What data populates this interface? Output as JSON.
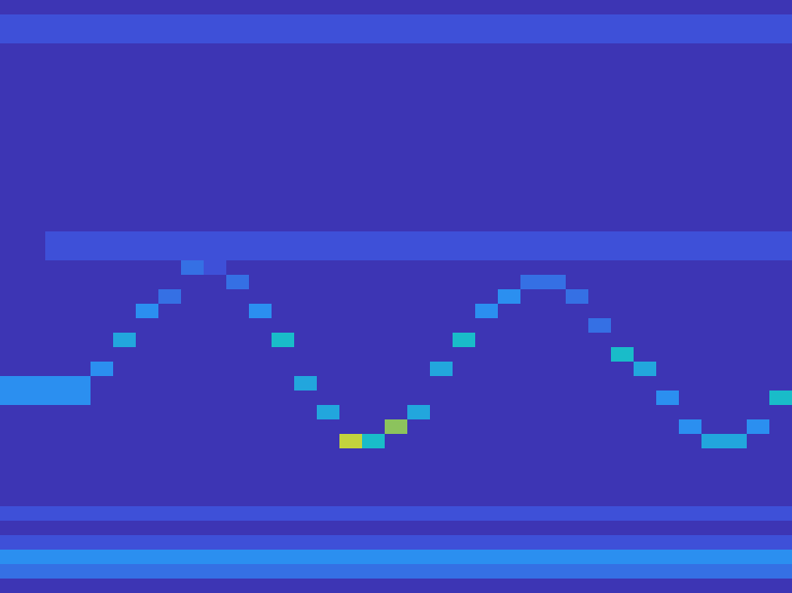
{
  "chart_data": {
    "type": "heatmap",
    "tick_labels": false,
    "zlim": [
      0,
      10
    ],
    "z": [
      [
        1,
        1,
        1,
        1,
        1,
        1,
        1,
        1,
        1,
        1,
        1,
        1,
        1,
        1,
        1,
        1,
        1,
        1,
        1,
        1,
        1,
        1,
        1,
        1,
        1,
        1,
        1,
        1,
        1,
        1,
        1,
        1,
        1,
        1,
        1
      ],
      [
        2,
        2,
        2,
        2,
        2,
        2,
        2,
        2,
        2,
        2,
        2,
        2,
        2,
        2,
        2,
        2,
        2,
        2,
        2,
        2,
        2,
        2,
        2,
        2,
        2,
        2,
        2,
        2,
        2,
        2,
        2,
        2,
        2,
        2,
        2
      ],
      [
        2,
        2,
        2,
        2,
        2,
        2,
        2,
        2,
        2,
        2,
        2,
        2,
        2,
        2,
        2,
        2,
        2,
        2,
        2,
        2,
        2,
        2,
        2,
        2,
        2,
        2,
        2,
        2,
        2,
        2,
        2,
        2,
        2,
        2,
        2
      ],
      [
        1,
        1,
        1,
        1,
        1,
        1,
        1,
        1,
        1,
        1,
        1,
        1,
        1,
        1,
        1,
        1,
        1,
        1,
        1,
        1,
        1,
        1,
        1,
        1,
        1,
        1,
        1,
        1,
        1,
        1,
        1,
        1,
        1,
        1,
        1
      ],
      [
        1,
        1,
        1,
        1,
        1,
        1,
        1,
        1,
        1,
        1,
        1,
        1,
        1,
        1,
        1,
        1,
        1,
        1,
        1,
        1,
        1,
        1,
        1,
        1,
        1,
        1,
        1,
        1,
        1,
        1,
        1,
        1,
        1,
        1,
        1
      ],
      [
        1,
        1,
        1,
        1,
        1,
        1,
        1,
        1,
        1,
        1,
        1,
        1,
        1,
        1,
        1,
        1,
        1,
        1,
        1,
        1,
        1,
        1,
        1,
        1,
        1,
        1,
        1,
        1,
        1,
        1,
        1,
        1,
        1,
        1,
        1
      ],
      [
        1,
        1,
        1,
        1,
        1,
        1,
        1,
        1,
        1,
        1,
        1,
        1,
        1,
        1,
        1,
        1,
        1,
        1,
        1,
        1,
        1,
        1,
        1,
        1,
        1,
        1,
        1,
        1,
        1,
        1,
        1,
        1,
        1,
        1,
        1
      ],
      [
        1,
        1,
        1,
        1,
        1,
        1,
        1,
        1,
        1,
        1,
        1,
        1,
        1,
        1,
        1,
        1,
        1,
        1,
        1,
        1,
        1,
        1,
        1,
        1,
        1,
        1,
        1,
        1,
        1,
        1,
        1,
        1,
        1,
        1,
        1
      ],
      [
        1,
        1,
        1,
        1,
        1,
        1,
        1,
        1,
        1,
        1,
        1,
        1,
        1,
        1,
        1,
        1,
        1,
        1,
        1,
        1,
        1,
        1,
        1,
        1,
        1,
        1,
        1,
        1,
        1,
        1,
        1,
        1,
        1,
        1,
        1
      ],
      [
        1,
        1,
        1,
        1,
        1,
        1,
        1,
        1,
        1,
        1,
        1,
        1,
        1,
        1,
        1,
        1,
        1,
        1,
        1,
        1,
        1,
        1,
        1,
        1,
        1,
        1,
        1,
        1,
        1,
        1,
        1,
        1,
        1,
        1,
        1
      ],
      [
        1,
        1,
        1,
        1,
        1,
        1,
        1,
        1,
        1,
        1,
        1,
        1,
        1,
        1,
        1,
        1,
        1,
        1,
        1,
        1,
        1,
        1,
        1,
        1,
        1,
        1,
        1,
        1,
        1,
        1,
        1,
        1,
        1,
        1,
        1
      ],
      [
        1,
        1,
        1,
        1,
        1,
        1,
        1,
        1,
        1,
        1,
        1,
        1,
        1,
        1,
        1,
        1,
        1,
        1,
        1,
        1,
        1,
        1,
        1,
        1,
        1,
        1,
        1,
        1,
        1,
        1,
        1,
        1,
        1,
        1,
        1
      ],
      [
        1,
        1,
        1,
        1,
        1,
        1,
        1,
        1,
        1,
        1,
        1,
        1,
        1,
        1,
        1,
        1,
        1,
        1,
        1,
        1,
        1,
        1,
        1,
        1,
        1,
        1,
        1,
        1,
        1,
        1,
        1,
        1,
        1,
        1,
        1
      ],
      [
        1,
        1,
        1,
        1,
        1,
        1,
        1,
        1,
        1,
        1,
        1,
        1,
        1,
        1,
        1,
        1,
        1,
        1,
        1,
        1,
        1,
        1,
        1,
        1,
        1,
        1,
        1,
        1,
        1,
        1,
        1,
        1,
        1,
        1,
        1
      ],
      [
        1,
        1,
        1,
        1,
        1,
        1,
        1,
        1,
        1,
        1,
        1,
        1,
        1,
        1,
        1,
        1,
        1,
        1,
        1,
        1,
        1,
        1,
        1,
        1,
        1,
        1,
        1,
        1,
        1,
        1,
        1,
        1,
        1,
        1,
        1
      ],
      [
        1,
        1,
        1,
        1,
        1,
        1,
        1,
        1,
        1,
        1,
        1,
        1,
        1,
        1,
        1,
        1,
        1,
        1,
        1,
        1,
        1,
        1,
        1,
        1,
        1,
        1,
        1,
        1,
        1,
        1,
        1,
        1,
        1,
        1,
        1
      ],
      [
        1,
        1,
        2,
        2,
        2,
        2,
        2,
        2,
        2,
        2,
        2,
        2,
        2,
        2,
        2,
        2,
        2,
        2,
        2,
        2,
        2,
        2,
        2,
        2,
        2,
        2,
        2,
        2,
        2,
        2,
        2,
        2,
        2,
        2,
        2
      ],
      [
        1,
        1,
        2,
        2,
        2,
        2,
        2,
        2,
        2,
        2,
        2,
        2,
        2,
        2,
        2,
        2,
        2,
        2,
        2,
        2,
        2,
        2,
        2,
        2,
        2,
        2,
        2,
        2,
        2,
        2,
        2,
        2,
        2,
        2,
        2
      ],
      [
        1,
        1,
        1,
        1,
        1,
        1,
        1,
        1,
        3,
        2,
        1,
        1,
        1,
        1,
        1,
        1,
        1,
        1,
        1,
        1,
        1,
        1,
        1,
        1,
        1,
        1,
        1,
        1,
        1,
        1,
        1,
        1,
        1,
        1,
        1
      ],
      [
        1,
        1,
        1,
        1,
        1,
        1,
        1,
        1,
        1,
        1,
        3,
        1,
        1,
        1,
        1,
        1,
        1,
        1,
        1,
        1,
        1,
        1,
        1,
        3,
        3,
        1,
        1,
        1,
        1,
        1,
        1,
        1,
        1,
        1,
        1
      ],
      [
        1,
        1,
        1,
        1,
        1,
        1,
        1,
        3,
        1,
        1,
        1,
        1,
        1,
        1,
        1,
        1,
        1,
        1,
        1,
        1,
        1,
        1,
        4,
        1,
        1,
        3,
        1,
        1,
        1,
        1,
        1,
        1,
        1,
        1,
        1
      ],
      [
        1,
        1,
        1,
        1,
        1,
        1,
        4,
        1,
        1,
        1,
        1,
        4,
        1,
        1,
        1,
        1,
        1,
        1,
        1,
        1,
        1,
        4,
        1,
        1,
        1,
        1,
        1,
        1,
        1,
        1,
        1,
        1,
        1,
        1,
        1
      ],
      [
        1,
        1,
        1,
        1,
        1,
        1,
        1,
        1,
        1,
        1,
        1,
        1,
        1,
        1,
        1,
        1,
        1,
        1,
        1,
        1,
        1,
        1,
        1,
        1,
        1,
        1,
        3,
        1,
        1,
        1,
        1,
        1,
        1,
        1,
        1
      ],
      [
        1,
        1,
        1,
        1,
        1,
        5,
        1,
        1,
        1,
        1,
        1,
        1,
        6,
        1,
        1,
        1,
        1,
        1,
        1,
        1,
        6,
        1,
        1,
        1,
        1,
        1,
        1,
        1,
        1,
        1,
        1,
        1,
        1,
        1,
        1
      ],
      [
        1,
        1,
        1,
        1,
        1,
        1,
        1,
        1,
        1,
        1,
        1,
        1,
        1,
        1,
        1,
        1,
        1,
        1,
        1,
        1,
        1,
        1,
        1,
        1,
        1,
        1,
        1,
        6,
        1,
        1,
        1,
        1,
        1,
        1,
        1
      ],
      [
        1,
        1,
        1,
        1,
        4,
        1,
        1,
        1,
        1,
        1,
        1,
        1,
        1,
        1,
        1,
        1,
        1,
        1,
        1,
        5,
        1,
        1,
        1,
        1,
        1,
        1,
        1,
        1,
        5,
        1,
        1,
        1,
        1,
        1,
        1
      ],
      [
        4,
        4,
        4,
        4,
        1,
        1,
        1,
        1,
        1,
        1,
        1,
        1,
        1,
        5,
        1,
        1,
        1,
        1,
        1,
        1,
        1,
        1,
        1,
        1,
        1,
        1,
        1,
        1,
        1,
        1,
        1,
        1,
        1,
        1,
        1
      ],
      [
        4,
        4,
        4,
        4,
        1,
        1,
        1,
        1,
        1,
        1,
        1,
        1,
        1,
        1,
        1,
        1,
        1,
        1,
        1,
        1,
        1,
        1,
        1,
        1,
        1,
        1,
        1,
        1,
        1,
        4,
        1,
        1,
        1,
        1,
        6
      ],
      [
        1,
        1,
        1,
        1,
        1,
        1,
        1,
        1,
        1,
        1,
        1,
        1,
        1,
        1,
        5,
        1,
        1,
        1,
        5,
        1,
        1,
        1,
        1,
        1,
        1,
        1,
        1,
        1,
        1,
        1,
        1,
        1,
        1,
        1,
        1
      ],
      [
        1,
        1,
        1,
        1,
        1,
        1,
        1,
        1,
        1,
        1,
        1,
        1,
        1,
        1,
        1,
        1,
        1,
        8,
        1,
        1,
        1,
        1,
        1,
        1,
        1,
        1,
        1,
        1,
        1,
        1,
        4,
        1,
        1,
        4,
        1
      ],
      [
        1,
        1,
        1,
        1,
        1,
        1,
        1,
        1,
        1,
        1,
        1,
        1,
        1,
        1,
        1,
        9,
        6,
        1,
        1,
        1,
        1,
        1,
        1,
        1,
        1,
        1,
        1,
        1,
        1,
        1,
        1,
        5,
        5,
        1,
        1
      ],
      [
        1,
        1,
        1,
        1,
        1,
        1,
        1,
        1,
        1,
        1,
        1,
        1,
        1,
        1,
        1,
        1,
        1,
        1,
        1,
        1,
        1,
        1,
        1,
        1,
        1,
        1,
        1,
        1,
        1,
        1,
        1,
        1,
        1,
        1,
        1
      ],
      [
        1,
        1,
        1,
        1,
        1,
        1,
        1,
        1,
        1,
        1,
        1,
        1,
        1,
        1,
        1,
        1,
        1,
        1,
        1,
        1,
        1,
        1,
        1,
        1,
        1,
        1,
        1,
        1,
        1,
        1,
        1,
        1,
        1,
        1,
        1
      ],
      [
        1,
        1,
        1,
        1,
        1,
        1,
        1,
        1,
        1,
        1,
        1,
        1,
        1,
        1,
        1,
        1,
        1,
        1,
        1,
        1,
        1,
        1,
        1,
        1,
        1,
        1,
        1,
        1,
        1,
        1,
        1,
        1,
        1,
        1,
        1
      ],
      [
        1,
        1,
        1,
        1,
        1,
        1,
        1,
        1,
        1,
        1,
        1,
        1,
        1,
        1,
        1,
        1,
        1,
        1,
        1,
        1,
        1,
        1,
        1,
        1,
        1,
        1,
        1,
        1,
        1,
        1,
        1,
        1,
        1,
        1,
        1
      ],
      [
        2,
        2,
        2,
        2,
        2,
        2,
        2,
        2,
        2,
        2,
        2,
        2,
        2,
        2,
        2,
        2,
        2,
        2,
        2,
        2,
        2,
        2,
        2,
        2,
        2,
        2,
        2,
        2,
        2,
        2,
        2,
        2,
        2,
        2,
        2
      ],
      [
        1,
        1,
        1,
        1,
        1,
        1,
        1,
        1,
        1,
        1,
        1,
        1,
        1,
        1,
        1,
        1,
        1,
        1,
        1,
        1,
        1,
        1,
        1,
        1,
        1,
        1,
        1,
        1,
        1,
        1,
        1,
        1,
        1,
        1,
        1
      ],
      [
        2,
        2,
        2,
        2,
        2,
        2,
        2,
        2,
        2,
        2,
        2,
        2,
        2,
        2,
        2,
        2,
        2,
        2,
        2,
        2,
        2,
        2,
        2,
        2,
        2,
        2,
        2,
        2,
        2,
        2,
        2,
        2,
        2,
        2,
        2
      ],
      [
        4,
        4,
        4,
        4,
        4,
        4,
        4,
        4,
        4,
        4,
        4,
        4,
        4,
        4,
        4,
        4,
        4,
        4,
        4,
        4,
        4,
        4,
        4,
        4,
        4,
        4,
        4,
        4,
        4,
        4,
        4,
        4,
        4,
        4,
        4
      ],
      [
        3,
        3,
        3,
        3,
        3,
        3,
        3,
        3,
        3,
        3,
        3,
        3,
        3,
        3,
        3,
        3,
        3,
        3,
        3,
        3,
        3,
        3,
        3,
        3,
        3,
        3,
        3,
        3,
        3,
        3,
        3,
        3,
        3,
        3,
        3
      ],
      [
        1,
        1,
        1,
        1,
        1,
        1,
        1,
        1,
        1,
        1,
        1,
        1,
        1,
        1,
        1,
        1,
        1,
        1,
        1,
        1,
        1,
        1,
        1,
        1,
        1,
        1,
        1,
        1,
        1,
        1,
        1,
        1,
        1,
        1,
        1
      ]
    ]
  }
}
